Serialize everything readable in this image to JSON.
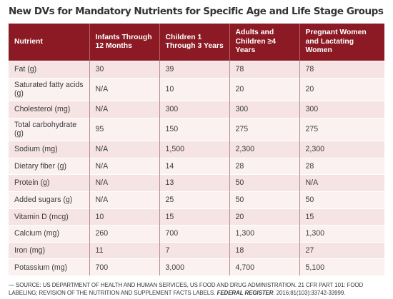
{
  "title": "New DVs for Mandatory Nutrients for Specific Age and Life Stage Groups",
  "table": {
    "headers": [
      "Nutrient",
      "Infants Through 12 Months",
      "Children 1 Through 3 Years",
      "Adults and Children ≥4 Years",
      "Pregnant Women and Lactating Women"
    ],
    "rows": [
      [
        "Fat (g)",
        "30",
        "39",
        "78",
        "78"
      ],
      [
        "Saturated fatty acids (g)",
        "N/A",
        "10",
        "20",
        "20"
      ],
      [
        "Cholesterol (mg)",
        "N/A",
        "300",
        "300",
        "300"
      ],
      [
        "Total carbohydrate (g)",
        "95",
        "150",
        "275",
        "275"
      ],
      [
        "Sodium (mg)",
        "N/A",
        "1,500",
        "2,300",
        "2,300"
      ],
      [
        "Dietary fiber (g)",
        "N/A",
        "14",
        "28",
        "28"
      ],
      [
        "Protein (g)",
        "N/A",
        "13",
        "50",
        "N/A"
      ],
      [
        "Added sugars (g)",
        "N/A",
        "25",
        "50",
        "50"
      ],
      [
        "Vitamin D (mcg)",
        "10",
        "15",
        "20",
        "15"
      ],
      [
        "Calcium (mg)",
        "260",
        "700",
        "1,300",
        "1,300"
      ],
      [
        "Iron (mg)",
        "11",
        "7",
        "18",
        "27"
      ],
      [
        "Potassium (mg)",
        "700",
        "3,000",
        "4,700",
        "5,100"
      ]
    ]
  },
  "source": {
    "text_before": "— SOURCE: US DEPARTMENT OF HEALTH AND HUMAN SERVICES, US FOOD AND DRUG ADMINISTRATION. 21 CFR PART 101: FOOD LABELING; REVISION OF THE NUTRITION AND SUPPLEMENT FACTS LABELS. ",
    "publication": "FEDERAL REGISTER",
    "text_after": ". 2016;81(103):33742-33999."
  }
}
